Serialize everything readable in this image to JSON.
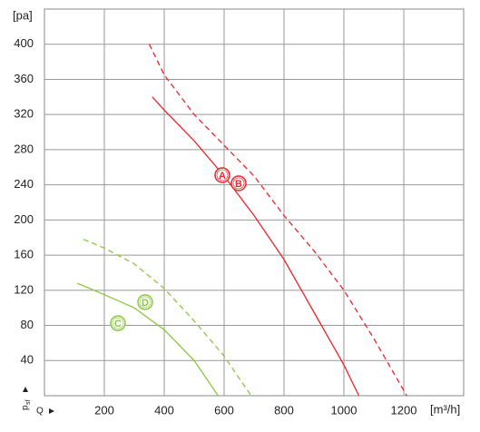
{
  "chart_data": {
    "type": "line",
    "y_unit": "[pa]",
    "x_unit": "[m³/h]",
    "y_label": "p",
    "y_label_sub": "sf",
    "x_label": "Q",
    "xlim": [
      0,
      1400
    ],
    "ylim": [
      0,
      440
    ],
    "xticks": [
      200,
      400,
      600,
      800,
      1000,
      1200
    ],
    "yticks": [
      40,
      80,
      120,
      160,
      200,
      240,
      280,
      320,
      360,
      400
    ],
    "grid": true,
    "series": [
      {
        "name": "A",
        "color": "#e8262b",
        "dashed": false,
        "x": [
          360,
          400,
          500,
          600,
          700,
          800,
          900,
          1000,
          1050
        ],
        "values": [
          340,
          325,
          290,
          250,
          205,
          155,
          95,
          35,
          0
        ]
      },
      {
        "name": "B",
        "color": "#e8262b",
        "dashed": true,
        "x": [
          350,
          400,
          500,
          600,
          700,
          800,
          900,
          1000,
          1100,
          1210
        ],
        "values": [
          400,
          365,
          320,
          285,
          250,
          205,
          165,
          120,
          65,
          0
        ]
      },
      {
        "name": "C",
        "color": "#8cc63f",
        "dashed": false,
        "x": [
          110,
          200,
          300,
          400,
          500,
          580
        ],
        "values": [
          128,
          115,
          100,
          75,
          40,
          0
        ]
      },
      {
        "name": "D",
        "color": "#8cc63f",
        "dashed": true,
        "x": [
          130,
          200,
          300,
          400,
          500,
          600,
          690
        ],
        "values": [
          178,
          168,
          150,
          122,
          85,
          45,
          0
        ]
      }
    ]
  }
}
